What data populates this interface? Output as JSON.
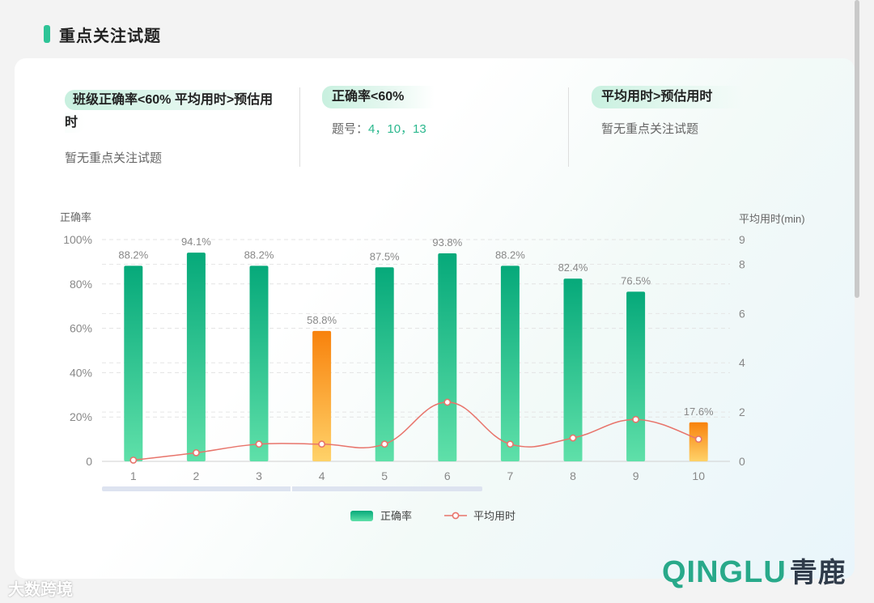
{
  "header": {
    "title": "重点关注试题"
  },
  "summary": [
    {
      "tag": "班级正确率<60%  平均用时>预估用时",
      "text": "暂无重点关注试题"
    },
    {
      "tag": "正确率<60%",
      "text_prefix": "题号：",
      "text_value": "4，10，13"
    },
    {
      "tag": "平均用时>预估用时",
      "text": "暂无重点关注试题"
    }
  ],
  "colors": {
    "green_top": "#06a97a",
    "green_bottom": "#5fe0a9",
    "orange_top": "#f8820c",
    "orange_bottom": "#ffd269",
    "line": "#e8746b",
    "accent": "#2ec497"
  },
  "chart_data": {
    "type": "bar",
    "categories": [
      "1",
      "2",
      "3",
      "4",
      "5",
      "6",
      "7",
      "8",
      "9",
      "10"
    ],
    "series": [
      {
        "name": "正确率",
        "values": [
          88.2,
          94.1,
          88.2,
          58.8,
          87.5,
          93.8,
          88.2,
          82.4,
          76.5,
          17.6
        ],
        "axis": "left",
        "labels": [
          "88.2%",
          "94.1%",
          "88.2%",
          "58.8%",
          "87.5%",
          "93.8%",
          "88.2%",
          "82.4%",
          "76.5%",
          "17.6%"
        ],
        "highlight_below": 60
      },
      {
        "name": "平均用时",
        "type": "line",
        "values": [
          0.05,
          0.35,
          0.7,
          0.7,
          0.7,
          2.4,
          0.7,
          0.95,
          1.7,
          0.9
        ],
        "axis": "right",
        "smooth": true
      }
    ],
    "ylabel": "正确率",
    "y2label": "平均用时(min)",
    "ylim": [
      0,
      100
    ],
    "yticks": [
      "0",
      "20%",
      "40%",
      "60%",
      "80%",
      "100%"
    ],
    "y2lim": [
      0,
      9
    ],
    "y2ticks": [
      "0",
      "2",
      "4",
      "6",
      "8",
      "9"
    ],
    "legend": "bottom-center",
    "grid": true
  },
  "logo": {
    "text": "QINGLU",
    "cn": "青鹿"
  },
  "watermark": "大数跨境"
}
